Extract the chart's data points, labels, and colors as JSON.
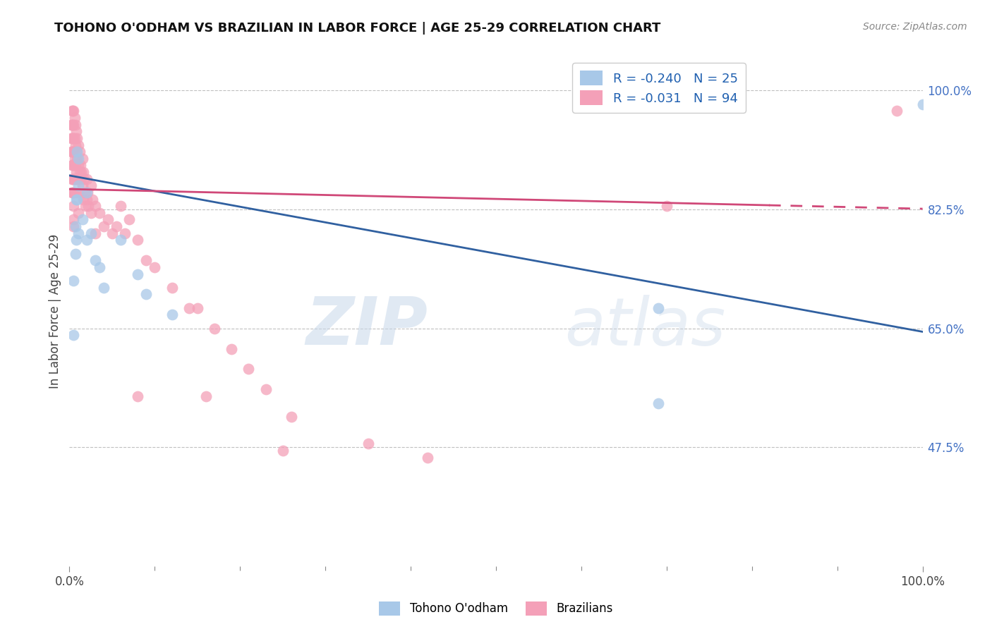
{
  "title": "TOHONO O'ODHAM VS BRAZILIAN IN LABOR FORCE | AGE 25-29 CORRELATION CHART",
  "source": "Source: ZipAtlas.com",
  "ylabel": "In Labor Force | Age 25-29",
  "xlim": [
    0.0,
    1.0
  ],
  "ylim": [
    0.3,
    1.05
  ],
  "yticks_right": [
    1.0,
    0.825,
    0.65,
    0.475
  ],
  "ytick_labels_right": [
    "100.0%",
    "82.5%",
    "65.0%",
    "47.5%"
  ],
  "legend_blue_R": "R = -0.240",
  "legend_blue_N": "N = 25",
  "legend_pink_R": "R = -0.031",
  "legend_pink_N": "N = 94",
  "blue_color": "#a8c8e8",
  "pink_color": "#f4a0b8",
  "blue_line_color": "#3060a0",
  "pink_line_color": "#d04878",
  "watermark_zip": "ZIP",
  "watermark_atlas": "atlas",
  "blue_line_x0": 0.0,
  "blue_line_y0": 0.875,
  "blue_line_x1": 1.0,
  "blue_line_y1": 0.645,
  "pink_line_x0": 0.0,
  "pink_line_y0": 0.855,
  "pink_line_x1": 1.0,
  "pink_line_y1": 0.826,
  "pink_line_dash_start": 0.82,
  "blue_x": [
    0.005,
    0.005,
    0.007,
    0.007,
    0.008,
    0.008,
    0.009,
    0.009,
    0.01,
    0.01,
    0.01,
    0.015,
    0.02,
    0.02,
    0.025,
    0.03,
    0.035,
    0.04,
    0.06,
    0.08,
    0.09,
    0.12,
    0.69,
    0.69,
    1.0
  ],
  "blue_y": [
    0.72,
    0.64,
    0.8,
    0.76,
    0.84,
    0.78,
    0.91,
    0.84,
    0.9,
    0.86,
    0.79,
    0.81,
    0.85,
    0.78,
    0.79,
    0.75,
    0.74,
    0.71,
    0.78,
    0.73,
    0.7,
    0.67,
    0.68,
    0.54,
    0.98
  ],
  "pink_x": [
    0.002,
    0.002,
    0.002,
    0.003,
    0.003,
    0.003,
    0.003,
    0.003,
    0.003,
    0.003,
    0.004,
    0.004,
    0.004,
    0.004,
    0.004,
    0.004,
    0.004,
    0.005,
    0.005,
    0.005,
    0.005,
    0.005,
    0.005,
    0.005,
    0.005,
    0.005,
    0.005,
    0.006,
    0.006,
    0.006,
    0.006,
    0.006,
    0.007,
    0.007,
    0.007,
    0.007,
    0.008,
    0.008,
    0.008,
    0.009,
    0.009,
    0.009,
    0.01,
    0.01,
    0.01,
    0.01,
    0.01,
    0.012,
    0.012,
    0.013,
    0.013,
    0.014,
    0.015,
    0.015,
    0.016,
    0.016,
    0.017,
    0.018,
    0.019,
    0.02,
    0.02,
    0.021,
    0.022,
    0.025,
    0.025,
    0.027,
    0.03,
    0.03,
    0.035,
    0.04,
    0.045,
    0.05,
    0.055,
    0.06,
    0.065,
    0.07,
    0.08,
    0.09,
    0.1,
    0.12,
    0.14,
    0.15,
    0.17,
    0.19,
    0.21,
    0.23,
    0.26,
    0.35,
    0.42,
    0.7,
    0.97,
    0.25,
    0.08,
    0.16
  ],
  "pink_y": [
    0.95,
    0.93,
    0.91,
    0.97,
    0.95,
    0.93,
    0.91,
    0.89,
    0.87,
    0.85,
    0.97,
    0.95,
    0.93,
    0.91,
    0.89,
    0.87,
    0.85,
    0.97,
    0.95,
    0.93,
    0.91,
    0.89,
    0.87,
    0.85,
    0.83,
    0.81,
    0.8,
    0.96,
    0.93,
    0.9,
    0.87,
    0.85,
    0.95,
    0.92,
    0.89,
    0.87,
    0.94,
    0.91,
    0.88,
    0.93,
    0.9,
    0.87,
    0.92,
    0.89,
    0.87,
    0.85,
    0.82,
    0.91,
    0.88,
    0.89,
    0.87,
    0.88,
    0.9,
    0.86,
    0.88,
    0.84,
    0.87,
    0.85,
    0.83,
    0.87,
    0.84,
    0.85,
    0.83,
    0.86,
    0.82,
    0.84,
    0.83,
    0.79,
    0.82,
    0.8,
    0.81,
    0.79,
    0.8,
    0.83,
    0.79,
    0.81,
    0.78,
    0.75,
    0.74,
    0.71,
    0.68,
    0.68,
    0.65,
    0.62,
    0.59,
    0.56,
    0.52,
    0.48,
    0.46,
    0.83,
    0.97,
    0.47,
    0.55,
    0.55
  ]
}
